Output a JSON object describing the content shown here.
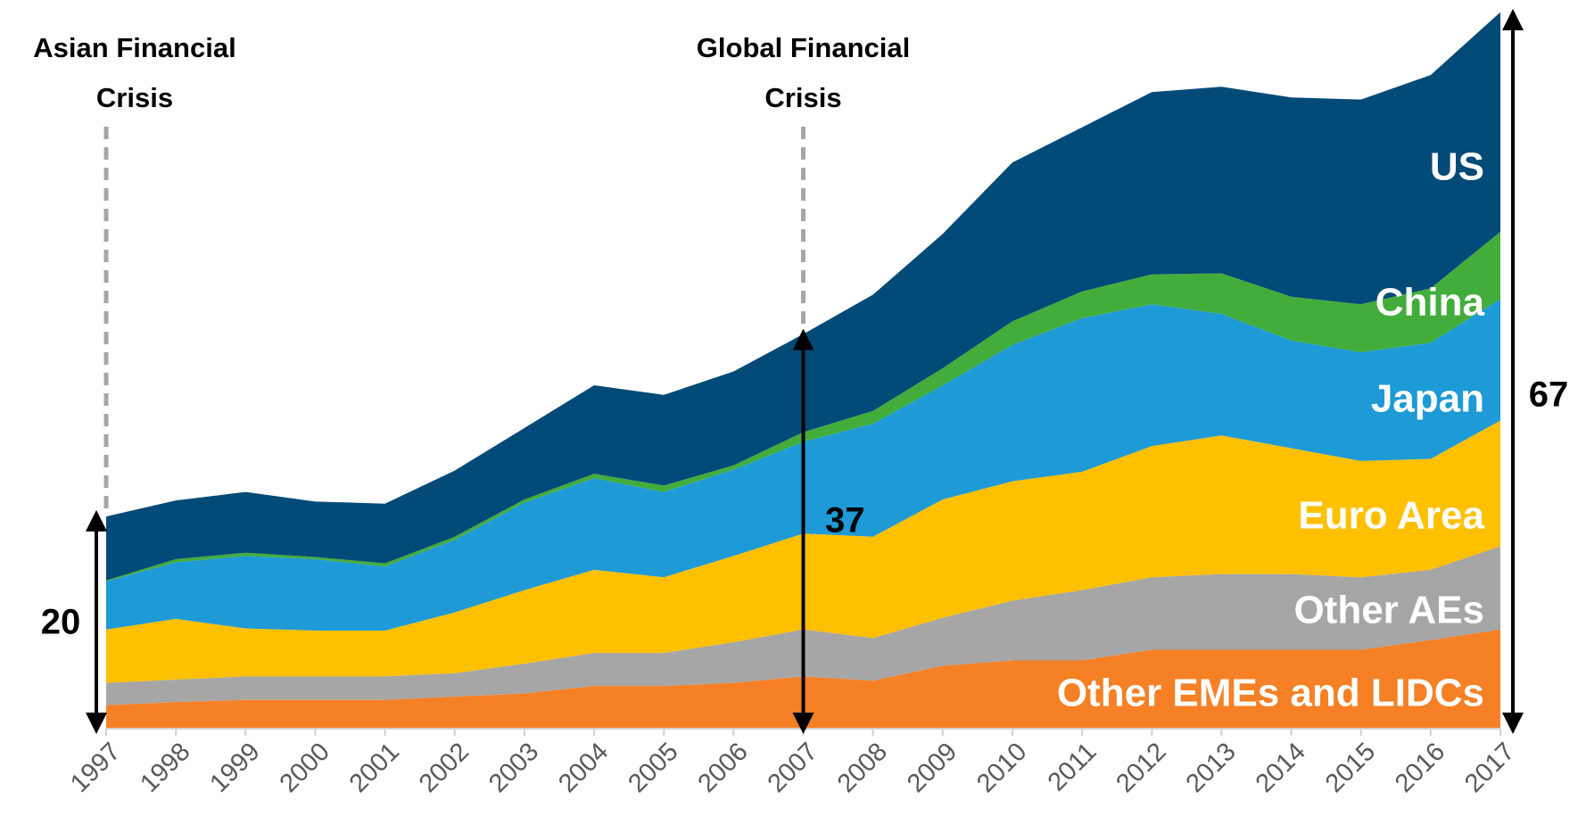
{
  "chart_data": {
    "type": "stacked_area",
    "categories": [
      "1997",
      "1998",
      "1999",
      "2000",
      "2001",
      "2002",
      "2003",
      "2004",
      "2005",
      "2006",
      "2007",
      "2008",
      "2009",
      "2010",
      "2011",
      "2012",
      "2013",
      "2014",
      "2015",
      "2016",
      "2017"
    ],
    "series": [
      {
        "name": "Other EMEs and LIDCs",
        "color": "#f58025",
        "label_color": "#ffffff",
        "values": [
          2.2,
          2.5,
          2.7,
          2.7,
          2.7,
          3.0,
          3.3,
          4.0,
          4.0,
          4.3,
          4.9,
          4.5,
          5.9,
          6.4,
          6.4,
          7.4,
          7.4,
          7.4,
          7.4,
          8.3,
          9.3
        ]
      },
      {
        "name": "Other AEs",
        "color": "#a6a6a6",
        "label_color": "#ffffff",
        "values": [
          2.1,
          2.1,
          2.2,
          2.2,
          2.2,
          2.2,
          2.8,
          3.1,
          3.1,
          3.8,
          4.4,
          4.0,
          4.5,
          5.6,
          6.6,
          6.8,
          7.1,
          7.1,
          6.8,
          6.6,
          7.8
        ]
      },
      {
        "name": "Euro Area",
        "color": "#ffc000",
        "label_color": "#ffffff",
        "values": [
          5.0,
          5.7,
          4.5,
          4.3,
          4.3,
          5.7,
          6.9,
          7.8,
          7.1,
          8.1,
          9.0,
          9.5,
          11.1,
          11.2,
          11.1,
          12.3,
          13.0,
          11.8,
          10.9,
          10.4,
          11.8
        ]
      },
      {
        "name": "Japan",
        "color": "#1e9ad6",
        "label_color": "#ffffff",
        "values": [
          4.5,
          5.3,
          6.8,
          6.7,
          6.0,
          6.8,
          8.2,
          8.6,
          8.0,
          8.1,
          8.6,
          10.6,
          10.7,
          12.8,
          14.4,
          13.3,
          11.4,
          10.1,
          10.2,
          10.9,
          11.4
        ]
      },
      {
        "name": "China",
        "color": "#43ad3b",
        "label_color": "#ffffff",
        "values": [
          0.1,
          0.3,
          0.3,
          0.2,
          0.3,
          0.3,
          0.3,
          0.4,
          0.6,
          0.4,
          0.9,
          1.2,
          1.6,
          2.2,
          2.5,
          2.8,
          3.8,
          4.1,
          4.5,
          5.1,
          6.3
        ]
      },
      {
        "name": "US",
        "color": "#024a77",
        "label_color": "#ffffff",
        "values": [
          6.0,
          5.5,
          5.7,
          5.2,
          5.6,
          6.2,
          6.7,
          8.3,
          8.5,
          8.8,
          9.2,
          10.9,
          12.6,
          14.9,
          15.4,
          17.1,
          17.5,
          18.7,
          19.2,
          20.0,
          20.6
        ]
      }
    ],
    "ylim": [
      0,
      68
    ],
    "events": [
      {
        "category": "1997",
        "lines": [
          "Asian Financial",
          "Crisis"
        ]
      },
      {
        "category": "2007",
        "lines": [
          "Global Financial",
          "Crisis"
        ]
      }
    ],
    "totals": [
      {
        "category": "1997",
        "value": 20
      },
      {
        "category": "2007",
        "value": 37
      },
      {
        "category": "2017",
        "value": 67
      }
    ]
  }
}
